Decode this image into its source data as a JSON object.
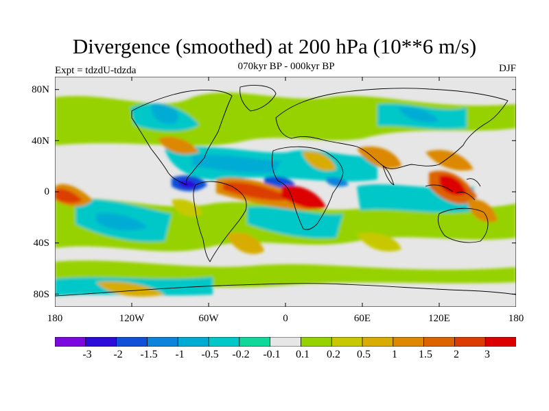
{
  "header": {
    "title": "Divergence (smoothed) at 200 hPa (10**6 m/s)",
    "subtitle": "070kyr BP - 000kyr BP",
    "experiment": "Expt = tdzdU-tdzda",
    "season": "DJF"
  },
  "axes": {
    "y_ticks": [
      "80N",
      "40N",
      "0",
      "40S",
      "80S"
    ],
    "x_ticks": [
      "180",
      "120W",
      "60W",
      "0",
      "60E",
      "120E",
      "180"
    ]
  },
  "colors": {
    "land_outline": "#000000",
    "no_change": "#e6e6e6",
    "palette": [
      "#7c08e0",
      "#2c0cd8",
      "#1050d8",
      "#0c84dc",
      "#00acd4",
      "#00c8c8",
      "#10d89c",
      "#e6e6e6",
      "#96d200",
      "#c8c800",
      "#d8ac00",
      "#dc8800",
      "#dc6400",
      "#dc3c00",
      "#dc0000"
    ]
  },
  "colorbar": {
    "labels": [
      "-3",
      "-2",
      "-1.5",
      "-1",
      "-0.5",
      "-0.2",
      "-0.1",
      "0.1",
      "0.2",
      "0.5",
      "1",
      "1.5",
      "2",
      "3"
    ]
  }
}
